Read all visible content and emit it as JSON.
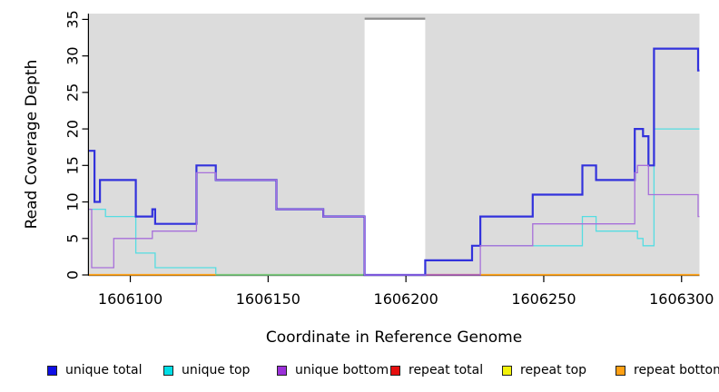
{
  "chart_data": {
    "type": "line",
    "subtype": "step-coverage-plot",
    "title": "",
    "xlabel": "Coordinate in Reference Genome",
    "ylabel": "Read Coverage Depth",
    "xlim": [
      1606085,
      1606306.5
    ],
    "ylim": [
      0,
      35
    ],
    "x_ticks": [
      1606100,
      1606150,
      1606200,
      1606250,
      1606300
    ],
    "y_ticks": [
      0,
      5,
      10,
      15,
      20,
      25,
      30,
      35
    ],
    "grid": false,
    "panel_bg": "#DCDCDC",
    "gap": {
      "from": 1606185,
      "to": 1606207,
      "fill": "#FFFFFF",
      "top_border": "#8C8C8C",
      "note": "white masked region spanning full plot height"
    },
    "series": [
      {
        "name": "unique total",
        "color": "#3232DC",
        "width": 2.2,
        "steps": [
          [
            1606085,
            17
          ],
          [
            1606087,
            10
          ],
          [
            1606089,
            13
          ],
          [
            1606102,
            8
          ],
          [
            1606108,
            9
          ],
          [
            1606109,
            7
          ],
          [
            1606124,
            15
          ],
          [
            1606131,
            13
          ],
          [
            1606153,
            9
          ],
          [
            1606170,
            8
          ],
          [
            1606185,
            0
          ],
          [
            1606207,
            2
          ],
          [
            1606224,
            4
          ],
          [
            1606227,
            8
          ],
          [
            1606246,
            11
          ],
          [
            1606264,
            15
          ],
          [
            1606269,
            13
          ],
          [
            1606283,
            20
          ],
          [
            1606286,
            19
          ],
          [
            1606288,
            15
          ],
          [
            1606290,
            31
          ],
          [
            1606306,
            28
          ]
        ]
      },
      {
        "name": "unique top",
        "color": "#55DDE2",
        "width": 1.3,
        "steps": [
          [
            1606085,
            9
          ],
          [
            1606091,
            8
          ],
          [
            1606102,
            3
          ],
          [
            1606109,
            1
          ],
          [
            1606131,
            0
          ],
          [
            1606207,
            2
          ],
          [
            1606224,
            4
          ],
          [
            1606264,
            8
          ],
          [
            1606269,
            6
          ],
          [
            1606284,
            5
          ],
          [
            1606286,
            4
          ],
          [
            1606290,
            20
          ],
          [
            1606306,
            20
          ]
        ]
      },
      {
        "name": "unique bottom",
        "color": "#A76FDA",
        "width": 1.3,
        "steps": [
          [
            1606085,
            9
          ],
          [
            1606086,
            1
          ],
          [
            1606094,
            5
          ],
          [
            1606108,
            6
          ],
          [
            1606124,
            14
          ],
          [
            1606131,
            13
          ],
          [
            1606153,
            9
          ],
          [
            1606170,
            8
          ],
          [
            1606185,
            0
          ],
          [
            1606227,
            4
          ],
          [
            1606246,
            7
          ],
          [
            1606283,
            14
          ],
          [
            1606284,
            15
          ],
          [
            1606288,
            11
          ],
          [
            1606306,
            8
          ]
        ]
      },
      {
        "name": "repeat total",
        "color": "#C9556E",
        "width": 1.6,
        "draw": false,
        "steps": [
          [
            1606085,
            0
          ],
          [
            1606306,
            0
          ]
        ]
      },
      {
        "name": "repeat top",
        "color": "#F2F20A",
        "width": 1.6,
        "draw": false,
        "steps": [
          [
            1606085,
            0
          ],
          [
            1606306,
            0
          ]
        ]
      },
      {
        "name": "repeat bottom",
        "color": "#FFA41C",
        "width": 1.6,
        "draw": false,
        "steps": [
          [
            1606085,
            0
          ],
          [
            1606306,
            0
          ]
        ]
      }
    ],
    "zero_line_segments": [
      {
        "color": "#FFA41C",
        "from": 1606085,
        "to": 1606131
      },
      {
        "color": "#7CC87A",
        "from": 1606131,
        "to": 1606185
      },
      {
        "color": "#C9556E",
        "from": 1606207,
        "to": 1606227
      },
      {
        "color": "#FFA41C",
        "from": 1606227,
        "to": 1606306.5
      }
    ],
    "legend_position": "bottom"
  },
  "legend": {
    "items": [
      {
        "label": "unique total",
        "color": "#0F0FE6"
      },
      {
        "label": "unique top",
        "color": "#00DEE6"
      },
      {
        "label": "unique bottom",
        "color": "#9B30D9"
      },
      {
        "label": "repeat total",
        "color": "#E60F0F"
      },
      {
        "label": "repeat top",
        "color": "#F2F20A"
      },
      {
        "label": "repeat bottom",
        "color": "#FFA014"
      }
    ]
  }
}
